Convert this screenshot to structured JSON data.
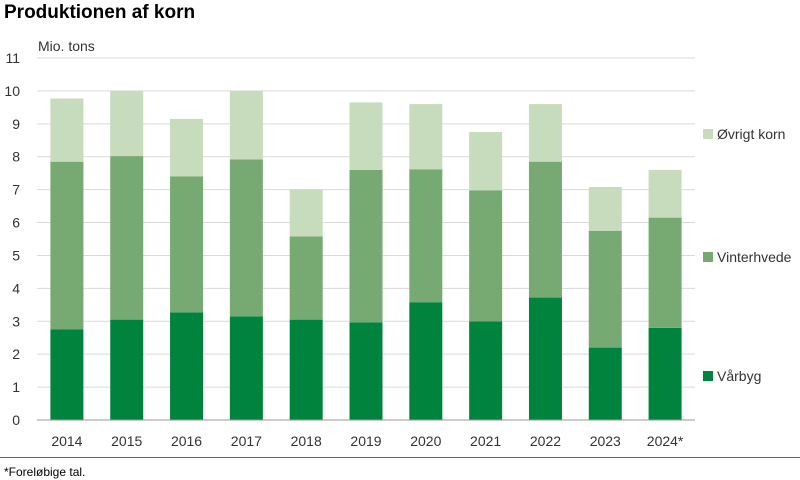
{
  "title": "Produktionen af korn",
  "unit_label": "Mio. tons",
  "footnote": "*Foreløbige tal.",
  "colors": {
    "varbyg": "#00843d",
    "vinterhvede": "#77aa72",
    "ovrigt_korn": "#c7dcbd",
    "grid": "#d9d9d9",
    "axis": "#999999",
    "text": "#333333"
  },
  "chart_data": {
    "type": "bar",
    "stacked": true,
    "title": "Produktionen af korn",
    "ylabel": "Mio. tons",
    "xlabel": "",
    "ylim": [
      0,
      11
    ],
    "yticks": [
      0,
      1,
      2,
      3,
      4,
      5,
      6,
      7,
      8,
      9,
      10,
      11
    ],
    "grid": true,
    "legend_position": "right",
    "categories": [
      "2014",
      "2015",
      "2016",
      "2017",
      "2018",
      "2019",
      "2020",
      "2021",
      "2022",
      "2023",
      "2024*"
    ],
    "series": [
      {
        "name": "Vårbyg",
        "color_key": "varbyg",
        "values": [
          2.75,
          3.05,
          3.27,
          3.15,
          3.05,
          2.97,
          3.58,
          3.0,
          3.72,
          2.2,
          2.8
        ]
      },
      {
        "name": "Vinterhvede",
        "color_key": "vinterhvede",
        "values": [
          5.1,
          4.97,
          4.13,
          4.77,
          2.53,
          4.63,
          4.04,
          3.98,
          4.13,
          3.55,
          3.35
        ]
      },
      {
        "name": "Øvrigt korn",
        "color_key": "ovrigt_korn",
        "values": [
          1.92,
          1.98,
          1.75,
          2.08,
          1.42,
          2.05,
          1.98,
          1.77,
          1.75,
          1.33,
          1.45
        ]
      }
    ]
  }
}
